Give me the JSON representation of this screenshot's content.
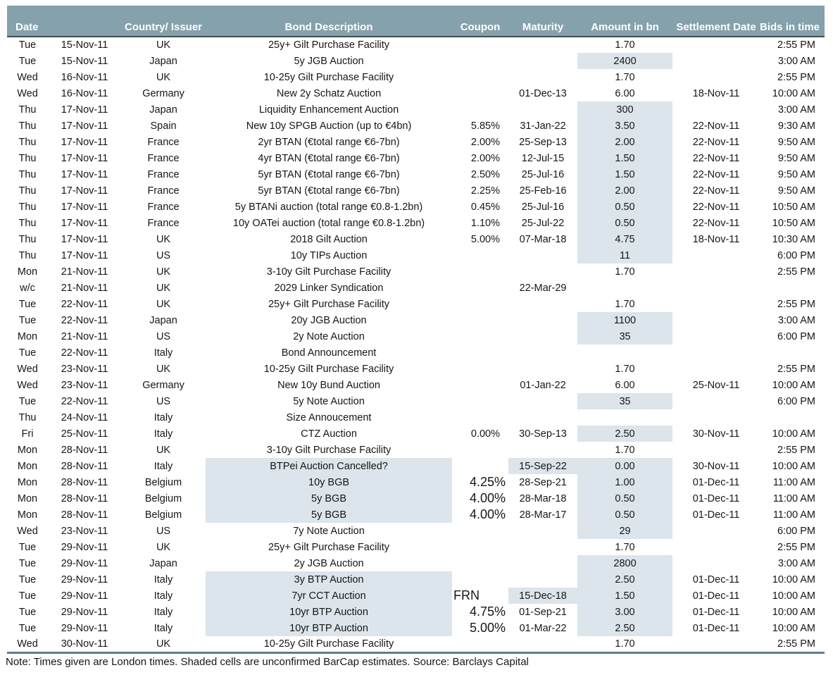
{
  "colors": {
    "header_bg": "#85a1ac",
    "header_text": "#ffffff",
    "header_rule": "#3f4d53",
    "shade": "#dbe5eb",
    "bottom_rule": "#5e7d8d",
    "text": "#161616"
  },
  "table": {
    "header": [
      {
        "label": "Date",
        "colspan": 2,
        "align": "left"
      },
      {
        "label": "Country/ Issuer"
      },
      {
        "label": "Bond Description"
      },
      {
        "label": "Coupon"
      },
      {
        "label": "Maturity"
      },
      {
        "label": "Amount in bn"
      },
      {
        "label": "Settlement Date"
      },
      {
        "label": "Bids in time",
        "align": "right"
      }
    ],
    "rows": [
      {
        "day": "Tue",
        "date": "15-Nov-11",
        "country": "UK",
        "desc": "25y+ Gilt Purchase Facility",
        "coupon": "",
        "maturity": "",
        "amount": "1.70",
        "settlement": "",
        "bids": "2:55 PM",
        "shade": []
      },
      {
        "day": "Tue",
        "date": "15-Nov-11",
        "country": "Japan",
        "desc": "5y JGB Auction",
        "coupon": "",
        "maturity": "",
        "amount": "2400",
        "settlement": "",
        "bids": "3:00 AM",
        "shade": [
          "amount"
        ]
      },
      {
        "day": "Wed",
        "date": "16-Nov-11",
        "country": "UK",
        "desc": "10-25y Gilt Purchase Facility",
        "coupon": "",
        "maturity": "",
        "amount": "1.70",
        "settlement": "",
        "bids": "2:55 PM",
        "shade": []
      },
      {
        "day": "Wed",
        "date": "16-Nov-11",
        "country": "Germany",
        "desc": "New 2y Schatz Auction",
        "coupon": "",
        "maturity": "01-Dec-13",
        "amount": "6.00",
        "settlement": "18-Nov-11",
        "bids": "10:00 AM",
        "shade": []
      },
      {
        "day": "Thu",
        "date": "17-Nov-11",
        "country": "Japan",
        "desc": "Liquidity Enhancement Auction",
        "coupon": "",
        "maturity": "",
        "amount": "300",
        "settlement": "",
        "bids": "3:00 AM",
        "shade": [
          "amount"
        ]
      },
      {
        "day": "Thu",
        "date": "17-Nov-11",
        "country": "Spain",
        "desc": "New 10y SPGB Auction (up to €4bn)",
        "coupon": "5.85%",
        "maturity": "31-Jan-22",
        "amount": "3.50",
        "settlement": "22-Nov-11",
        "bids": "9:30 AM",
        "shade": [
          "amount"
        ]
      },
      {
        "day": "Thu",
        "date": "17-Nov-11",
        "country": "France",
        "desc": "2yr BTAN (€total range €6-7bn)",
        "coupon": "2.00%",
        "maturity": "25-Sep-13",
        "amount": "2.00",
        "settlement": "22-Nov-11",
        "bids": "9:50 AM",
        "shade": [
          "amount"
        ]
      },
      {
        "day": "Thu",
        "date": "17-Nov-11",
        "country": "France",
        "desc": "4yr BTAN (€total range €6-7bn)",
        "coupon": "2.00%",
        "maturity": "12-Jul-15",
        "amount": "1.50",
        "settlement": "22-Nov-11",
        "bids": "9:50 AM",
        "shade": [
          "amount"
        ]
      },
      {
        "day": "Thu",
        "date": "17-Nov-11",
        "country": "France",
        "desc": "5yr BTAN (€total range €6-7bn)",
        "coupon": "2.50%",
        "maturity": "25-Jul-16",
        "amount": "1.50",
        "settlement": "22-Nov-11",
        "bids": "9:50 AM",
        "shade": [
          "amount"
        ]
      },
      {
        "day": "Thu",
        "date": "17-Nov-11",
        "country": "France",
        "desc": "5yr BTAN (€total range €6-7bn)",
        "coupon": "2.25%",
        "maturity": "25-Feb-16",
        "amount": "2.00",
        "settlement": "22-Nov-11",
        "bids": "9:50 AM",
        "shade": [
          "amount"
        ]
      },
      {
        "day": "Thu",
        "date": "17-Nov-11",
        "country": "France",
        "desc": "5y BTANi auction (total range €0.8-1.2bn)",
        "coupon": "0.45%",
        "maturity": "25-Jul-16",
        "amount": "0.50",
        "settlement": "22-Nov-11",
        "bids": "10:50 AM",
        "shade": [
          "amount"
        ]
      },
      {
        "day": "Thu",
        "date": "17-Nov-11",
        "country": "France",
        "desc": "10y OATei auction (total range €0.8-1.2bn)",
        "coupon": "1.10%",
        "maturity": "25-Jul-22",
        "amount": "0.50",
        "settlement": "22-Nov-11",
        "bids": "10:50 AM",
        "shade": [
          "amount"
        ]
      },
      {
        "day": "Thu",
        "date": "17-Nov-11",
        "country": "UK",
        "desc": "2018 Gilt Auction",
        "coupon": "5.00%",
        "maturity": "07-Mar-18",
        "amount": "4.75",
        "settlement": "18-Nov-11",
        "bids": "10:30 AM",
        "shade": [
          "amount"
        ]
      },
      {
        "day": "Thu",
        "date": "17-Nov-11",
        "country": "US",
        "desc": "10y TIPs Auction",
        "coupon": "",
        "maturity": "",
        "amount": "11",
        "settlement": "",
        "bids": "6:00 PM",
        "shade": [
          "amount"
        ]
      },
      {
        "day": "Mon",
        "date": "21-Nov-11",
        "country": "UK",
        "desc": "3-10y Gilt Purchase Facility",
        "coupon": "",
        "maturity": "",
        "amount": "1.70",
        "settlement": "",
        "bids": "2:55 PM",
        "shade": []
      },
      {
        "day": "w/c",
        "date": "21-Nov-11",
        "country": "UK",
        "desc": "2029 Linker Syndication",
        "coupon": "",
        "maturity": "22-Mar-29",
        "amount": "",
        "settlement": "",
        "bids": "",
        "shade": []
      },
      {
        "day": "Tue",
        "date": "22-Nov-11",
        "country": "UK",
        "desc": "25y+ Gilt Purchase Facility",
        "coupon": "",
        "maturity": "",
        "amount": "1.70",
        "settlement": "",
        "bids": "2:55 PM",
        "shade": []
      },
      {
        "day": "Tue",
        "date": "22-Nov-11",
        "country": "Japan",
        "desc": "20y JGB Auction",
        "coupon": "",
        "maturity": "",
        "amount": "1100",
        "settlement": "",
        "bids": "3:00 AM",
        "shade": [
          "amount"
        ]
      },
      {
        "day": "Mon",
        "date": "21-Nov-11",
        "country": "US",
        "desc": "2y Note Auction",
        "coupon": "",
        "maturity": "",
        "amount": "35",
        "settlement": "",
        "bids": "6:00 PM",
        "shade": [
          "amount"
        ]
      },
      {
        "day": "Tue",
        "date": "22-Nov-11",
        "country": "Italy",
        "desc": "Bond Announcement",
        "coupon": "",
        "maturity": "",
        "amount": "",
        "settlement": "",
        "bids": "",
        "shade": []
      },
      {
        "day": "Wed",
        "date": "23-Nov-11",
        "country": "UK",
        "desc": "10-25y Gilt Purchase Facility",
        "coupon": "",
        "maturity": "",
        "amount": "1.70",
        "settlement": "",
        "bids": "2:55 PM",
        "shade": []
      },
      {
        "day": "Wed",
        "date": "23-Nov-11",
        "country": "Germany",
        "desc": "New 10y Bund Auction",
        "coupon": "",
        "maturity": "01-Jan-22",
        "amount": "6.00",
        "settlement": "25-Nov-11",
        "bids": "10:00 AM",
        "shade": []
      },
      {
        "day": "Tue",
        "date": "22-Nov-11",
        "country": "US",
        "desc": "5y Note Auction",
        "coupon": "",
        "maturity": "",
        "amount": "35",
        "settlement": "",
        "bids": "6:00 PM",
        "shade": [
          "amount"
        ]
      },
      {
        "day": "Thu",
        "date": "24-Nov-11",
        "country": "Italy",
        "desc": "Size Annoucement",
        "coupon": "",
        "maturity": "",
        "amount": "",
        "settlement": "",
        "bids": "",
        "shade": []
      },
      {
        "day": "Fri",
        "date": "25-Nov-11",
        "country": "Italy",
        "desc": "CTZ Auction",
        "coupon": "0.00%",
        "maturity": "30-Sep-13",
        "amount": "2.50",
        "settlement": "30-Nov-11",
        "bids": "10:00 AM",
        "shade": [
          "amount"
        ]
      },
      {
        "day": "Mon",
        "date": "28-Nov-11",
        "country": "UK",
        "desc": "3-10y Gilt Purchase Facility",
        "coupon": "",
        "maturity": "",
        "amount": "1.70",
        "settlement": "",
        "bids": "2:55 PM",
        "shade": []
      },
      {
        "day": "Mon",
        "date": "28-Nov-11",
        "country": "Italy",
        "desc": "BTPei Auction Cancelled?",
        "coupon": "",
        "maturity": "15-Sep-22",
        "amount": "0.00",
        "settlement": "30-Nov-11",
        "bids": "10:00 AM",
        "shade": [
          "desc",
          "maturity",
          "amount"
        ]
      },
      {
        "day": "Mon",
        "date": "28-Nov-11",
        "country": "Belgium",
        "desc": "10y BGB",
        "coupon": "4.25%",
        "coupon_big": true,
        "maturity": "28-Sep-21",
        "amount": "1.00",
        "settlement": "01-Dec-11",
        "bids": "11:00 AM",
        "shade": [
          "desc",
          "amount"
        ]
      },
      {
        "day": "Mon",
        "date": "28-Nov-11",
        "country": "Belgium",
        "desc": "5y BGB",
        "coupon": "4.00%",
        "coupon_big": true,
        "maturity": "28-Mar-18",
        "amount": "0.50",
        "settlement": "01-Dec-11",
        "bids": "11:00 AM",
        "shade": [
          "desc",
          "amount"
        ]
      },
      {
        "day": "Mon",
        "date": "28-Nov-11",
        "country": "Belgium",
        "desc": "5y BGB",
        "coupon": "4.00%",
        "coupon_big": true,
        "maturity": "28-Mar-17",
        "amount": "0.50",
        "settlement": "01-Dec-11",
        "bids": "11:00 AM",
        "shade": [
          "desc",
          "amount"
        ]
      },
      {
        "day": "Wed",
        "date": "23-Nov-11",
        "country": "US",
        "desc": "7y Note Auction",
        "coupon": "",
        "maturity": "",
        "amount": "29",
        "settlement": "",
        "bids": "6:00 PM",
        "shade": [
          "amount"
        ]
      },
      {
        "day": "Tue",
        "date": "29-Nov-11",
        "country": "UK",
        "desc": "25y+ Gilt Purchase Facility",
        "coupon": "",
        "maturity": "",
        "amount": "1.70",
        "settlement": "",
        "bids": "2:55 PM",
        "shade": []
      },
      {
        "day": "Tue",
        "date": "29-Nov-11",
        "country": "Japan",
        "desc": "2y JGB Auction",
        "coupon": "",
        "maturity": "",
        "amount": "2800",
        "settlement": "",
        "bids": "3:00 AM",
        "shade": [
          "amount"
        ]
      },
      {
        "day": "Tue",
        "date": "29-Nov-11",
        "country": "Italy",
        "desc": "3y BTP Auction",
        "coupon": "",
        "maturity": "",
        "amount": "2.50",
        "settlement": "01-Dec-11",
        "bids": "10:00 AM",
        "shade": [
          "desc",
          "amount"
        ]
      },
      {
        "day": "Tue",
        "date": "29-Nov-11",
        "country": "Italy",
        "desc": "7yr CCT Auction",
        "coupon": "FRN",
        "coupon_big": true,
        "coupon_left": true,
        "maturity": "15-Dec-18",
        "amount": "1.50",
        "settlement": "01-Dec-11",
        "bids": "10:00 AM",
        "shade": [
          "desc",
          "maturity",
          "amount"
        ]
      },
      {
        "day": "Tue",
        "date": "29-Nov-11",
        "country": "Italy",
        "desc": "10yr BTP Auction",
        "coupon": "4.75%",
        "coupon_big": true,
        "maturity": "01-Sep-21",
        "amount": "3.00",
        "settlement": "01-Dec-11",
        "bids": "10:00 AM",
        "shade": [
          "desc",
          "amount"
        ]
      },
      {
        "day": "Tue",
        "date": "29-Nov-11",
        "country": "Italy",
        "desc": "10yr BTP Auction",
        "coupon": "5.00%",
        "coupon_big": true,
        "maturity": "01-Mar-22",
        "amount": "2.50",
        "settlement": "01-Dec-11",
        "bids": "10:00 AM",
        "shade": [
          "desc",
          "amount"
        ]
      },
      {
        "day": "Wed",
        "date": "30-Nov-11",
        "country": "UK",
        "desc": "10-25y Gilt Purchase Facility",
        "coupon": "",
        "maturity": "",
        "amount": "1.70",
        "settlement": "",
        "bids": "2:55 PM",
        "shade": []
      }
    ],
    "note": "Note: Times given are London times. Shaded cells are unconfirmed BarCap estimates. Source: Barclays Capital"
  }
}
